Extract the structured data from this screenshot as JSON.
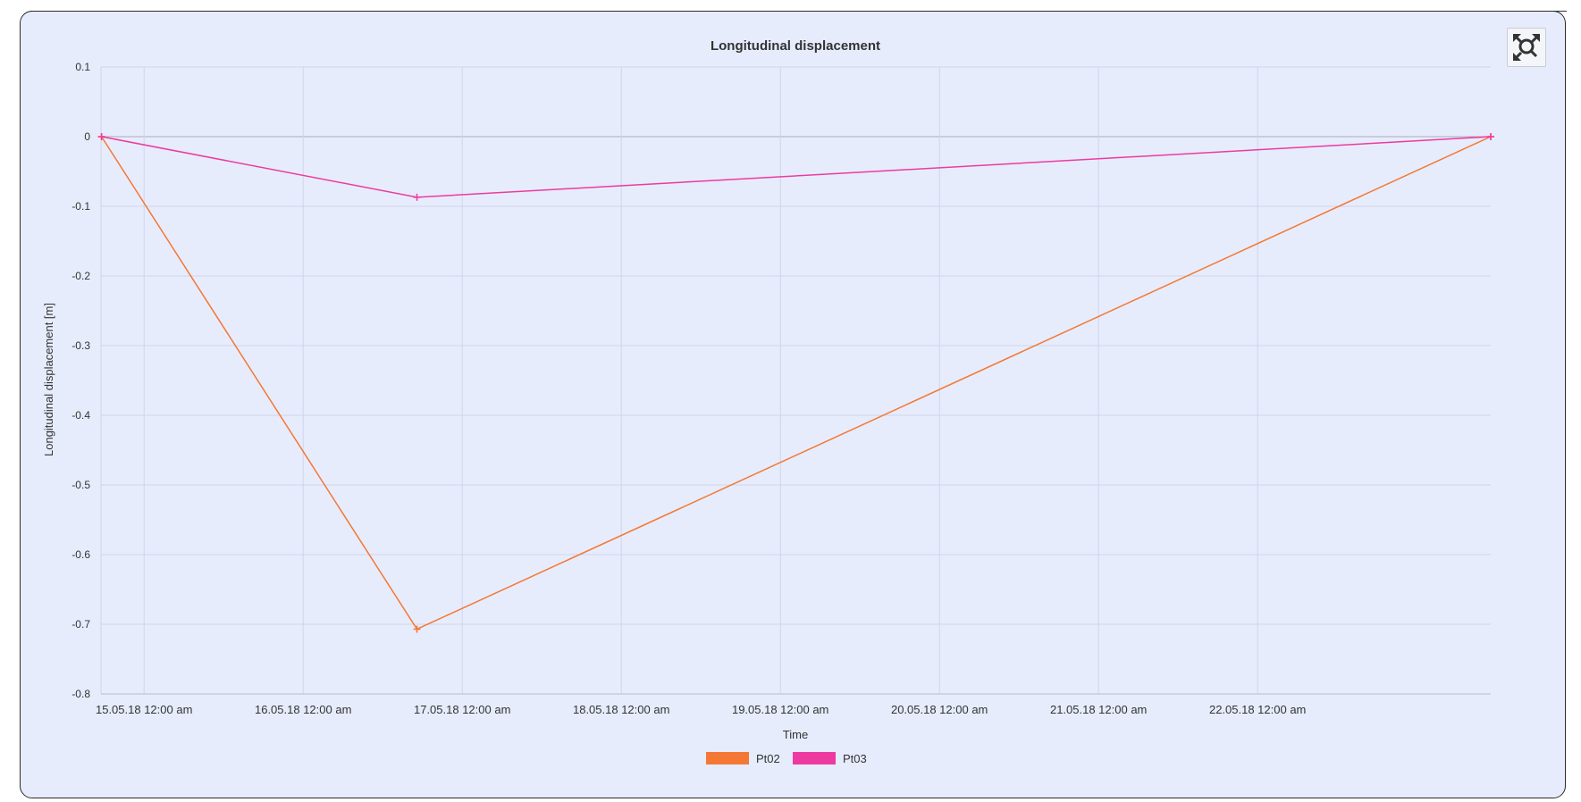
{
  "controls": {
    "reset_zoom_icon": "reset-zoom-icon"
  },
  "colors": {
    "Pt02": "#f47833",
    "Pt03": "#ee3aa0",
    "panel_bg": "#e7ecfd",
    "grid": "#cfd5ea",
    "zero_line": "#a9acb6"
  },
  "chart_data": {
    "type": "line",
    "title": "Longitudinal displacement",
    "xlabel": "Time",
    "ylabel": "Longitudinal displacement [m]",
    "ylim": [
      -0.8,
      0.1
    ],
    "y_ticks": [
      0.1,
      0,
      -0.1,
      -0.2,
      -0.3,
      -0.4,
      -0.5,
      -0.6,
      -0.7,
      -0.8
    ],
    "y_tick_labels": [
      "0.1",
      "0",
      "-0.1",
      "-0.2",
      "-0.3",
      "-0.4",
      "-0.5",
      "-0.6",
      "-0.7",
      "-0.8"
    ],
    "xlim": [
      "2018-05-14T17:30",
      "2018-05-23T11:10"
    ],
    "x_ticks": [
      "2018-05-15T00:00",
      "2018-05-16T00:00",
      "2018-05-17T00:00",
      "2018-05-18T00:00",
      "2018-05-19T00:00",
      "2018-05-20T00:00",
      "2018-05-21T00:00",
      "2018-05-22T00:00"
    ],
    "x_tick_labels": [
      "15.05.18 12:00 am",
      "16.05.18 12:00 am",
      "17.05.18 12:00 am",
      "18.05.18 12:00 am",
      "19.05.18 12:00 am",
      "20.05.18 12:00 am",
      "21.05.18 12:00 am",
      "22.05.18 12:00 am"
    ],
    "grid": true,
    "legend": "bottom-center",
    "series": [
      {
        "name": "Pt02",
        "x": [
          "2018-05-14T17:35",
          "2018-05-16T17:10",
          "2018-05-23T11:10"
        ],
        "y": [
          0,
          -0.707,
          0
        ]
      },
      {
        "name": "Pt03",
        "x": [
          "2018-05-14T17:35",
          "2018-05-16T17:10",
          "2018-05-23T11:10"
        ],
        "y": [
          0,
          -0.087,
          0
        ]
      }
    ]
  }
}
